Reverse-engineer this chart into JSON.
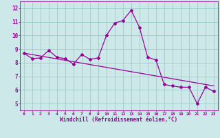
{
  "line1_x": [
    0,
    1,
    2,
    3,
    4,
    5,
    6,
    7,
    8,
    9,
    10,
    11,
    12,
    13,
    14,
    15,
    16,
    17,
    18,
    19,
    20,
    21,
    22,
    23
  ],
  "line1_y": [
    8.7,
    8.3,
    8.35,
    8.9,
    8.4,
    8.3,
    7.9,
    8.6,
    8.25,
    8.35,
    10.0,
    10.9,
    11.1,
    11.85,
    10.6,
    8.4,
    8.2,
    6.4,
    6.3,
    6.2,
    6.2,
    5.0,
    6.2,
    5.9
  ],
  "line2_x": [
    0,
    23
  ],
  "line2_y": [
    8.7,
    6.3
  ],
  "line_color": "#990099",
  "bg_color": "#cce8e8",
  "grid_color": "#99cccc",
  "xlabel": "Windchill (Refroidissement éolien,°C)",
  "xlim": [
    -0.5,
    23.5
  ],
  "ylim": [
    4.5,
    12.5
  ],
  "xticks": [
    0,
    1,
    2,
    3,
    4,
    5,
    6,
    7,
    8,
    9,
    10,
    11,
    12,
    13,
    14,
    15,
    16,
    17,
    18,
    19,
    20,
    21,
    22,
    23
  ],
  "yticks": [
    5,
    6,
    7,
    8,
    9,
    10,
    11,
    12
  ],
  "xlabel_color": "#990099",
  "tick_color": "#990099",
  "marker": "D",
  "markersize": 2.0,
  "linewidth": 0.9
}
